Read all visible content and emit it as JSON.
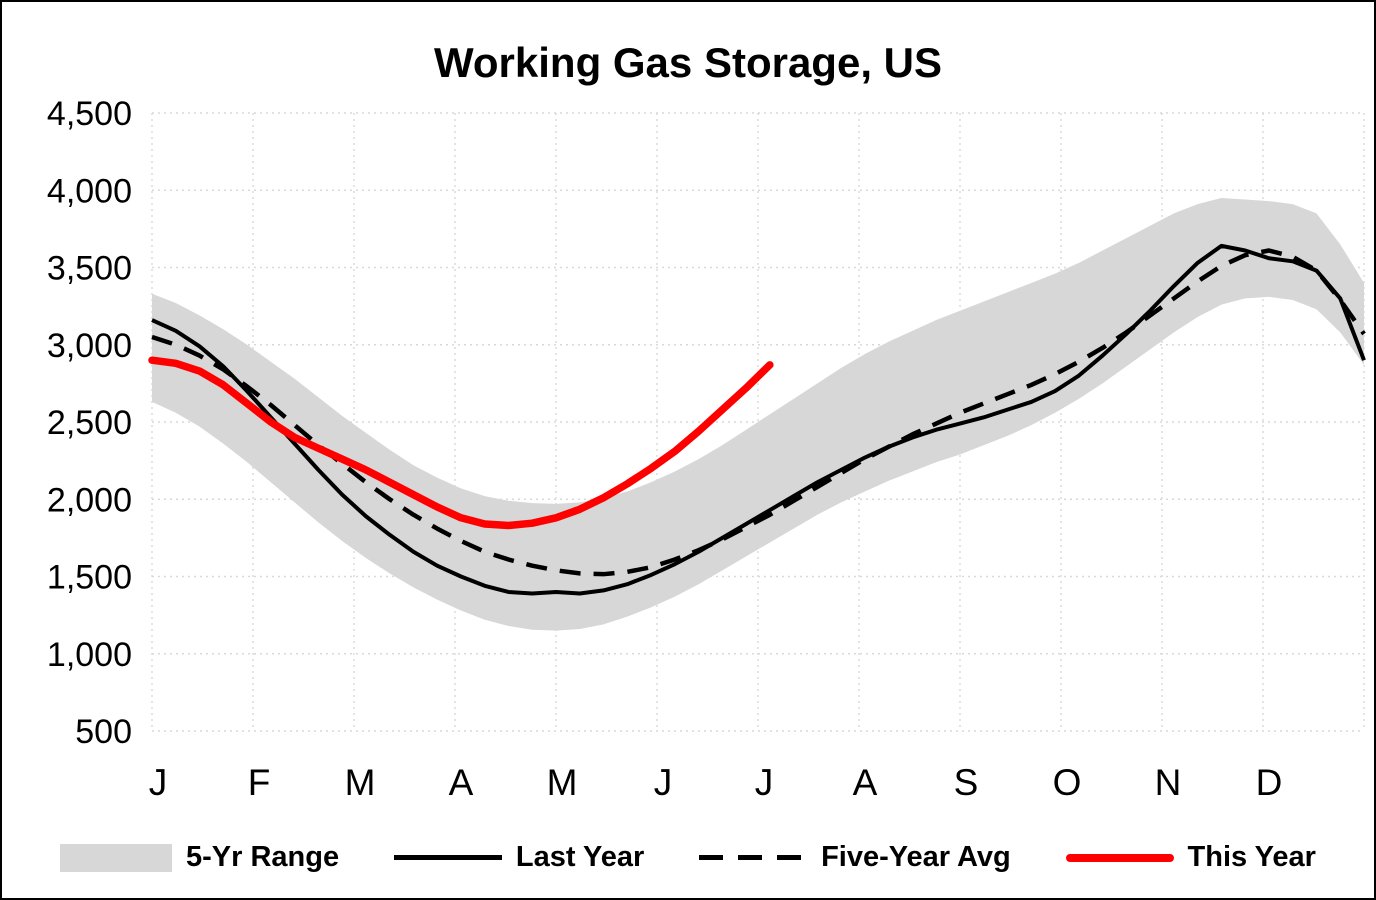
{
  "chart_data": {
    "type": "line",
    "title": "Working Gas Storage, US",
    "ylim": [
      500,
      4500
    ],
    "y_ticks": [
      {
        "value": 4500,
        "label": "4,500"
      },
      {
        "value": 4000,
        "label": "4,000"
      },
      {
        "value": 3500,
        "label": "3,500"
      },
      {
        "value": 3000,
        "label": "3,000"
      },
      {
        "value": 2500,
        "label": "2,500"
      },
      {
        "value": 2000,
        "label": "2,000"
      },
      {
        "value": 1500,
        "label": "1,500"
      },
      {
        "value": 1000,
        "label": "1,000"
      },
      {
        "value": 500,
        "label": "500"
      }
    ],
    "months": [
      "J",
      "F",
      "M",
      "A",
      "M",
      "J",
      "J",
      "A",
      "S",
      "O",
      "N",
      "D"
    ],
    "weeks": 52,
    "grid": "dotted",
    "legend": [
      "5-Yr Range",
      "Last Year",
      "Five-Year Avg",
      "This Year"
    ],
    "colors": {
      "band": "#d7d7d7",
      "last_year": "#000000",
      "five_year_avg": "#000000",
      "this_year": "#ff0000",
      "grid": "#d9d9d9"
    },
    "series": {
      "five_yr_range_high": [
        3330,
        3270,
        3190,
        3100,
        3000,
        2890,
        2780,
        2660,
        2540,
        2430,
        2320,
        2220,
        2140,
        2070,
        2020,
        1990,
        1975,
        1970,
        1980,
        2010,
        2050,
        2110,
        2180,
        2260,
        2350,
        2450,
        2550,
        2650,
        2750,
        2850,
        2940,
        3020,
        3090,
        3160,
        3220,
        3280,
        3340,
        3400,
        3460,
        3530,
        3610,
        3690,
        3770,
        3850,
        3910,
        3950,
        3940,
        3930,
        3910,
        3850,
        3650,
        3400
      ],
      "five_yr_range_low": [
        2630,
        2560,
        2470,
        2360,
        2240,
        2110,
        1980,
        1850,
        1730,
        1620,
        1520,
        1430,
        1350,
        1280,
        1220,
        1180,
        1155,
        1150,
        1160,
        1190,
        1240,
        1300,
        1370,
        1450,
        1540,
        1630,
        1720,
        1810,
        1900,
        1980,
        2050,
        2120,
        2180,
        2240,
        2290,
        2350,
        2410,
        2480,
        2560,
        2650,
        2750,
        2860,
        2970,
        3080,
        3180,
        3260,
        3300,
        3310,
        3290,
        3230,
        3080,
        2870
      ],
      "last_year": [
        3160,
        3090,
        2990,
        2860,
        2700,
        2530,
        2360,
        2190,
        2030,
        1890,
        1770,
        1660,
        1570,
        1500,
        1440,
        1400,
        1390,
        1400,
        1390,
        1410,
        1450,
        1510,
        1580,
        1660,
        1750,
        1840,
        1930,
        2020,
        2110,
        2190,
        2270,
        2340,
        2400,
        2450,
        2490,
        2530,
        2580,
        2630,
        2700,
        2800,
        2930,
        3070,
        3220,
        3380,
        3530,
        3640,
        3610,
        3560,
        3540,
        3480,
        3300,
        2900
      ],
      "five_year_avg": [
        3050,
        3000,
        2930,
        2840,
        2730,
        2610,
        2480,
        2350,
        2230,
        2110,
        2000,
        1900,
        1810,
        1730,
        1660,
        1610,
        1570,
        1540,
        1520,
        1515,
        1530,
        1560,
        1610,
        1670,
        1740,
        1820,
        1900,
        1990,
        2080,
        2170,
        2260,
        2340,
        2420,
        2490,
        2560,
        2620,
        2680,
        2740,
        2810,
        2890,
        2980,
        3080,
        3190,
        3300,
        3410,
        3510,
        3580,
        3610,
        3570,
        3480,
        3290,
        3070
      ],
      "this_year": [
        2900,
        2880,
        2830,
        2740,
        2620,
        2500,
        2400,
        2330,
        2260,
        2190,
        2110,
        2030,
        1950,
        1880,
        1840,
        1830,
        1845,
        1880,
        1935,
        2010,
        2100,
        2200,
        2310,
        2440,
        2580,
        2720,
        2870
      ]
    }
  }
}
